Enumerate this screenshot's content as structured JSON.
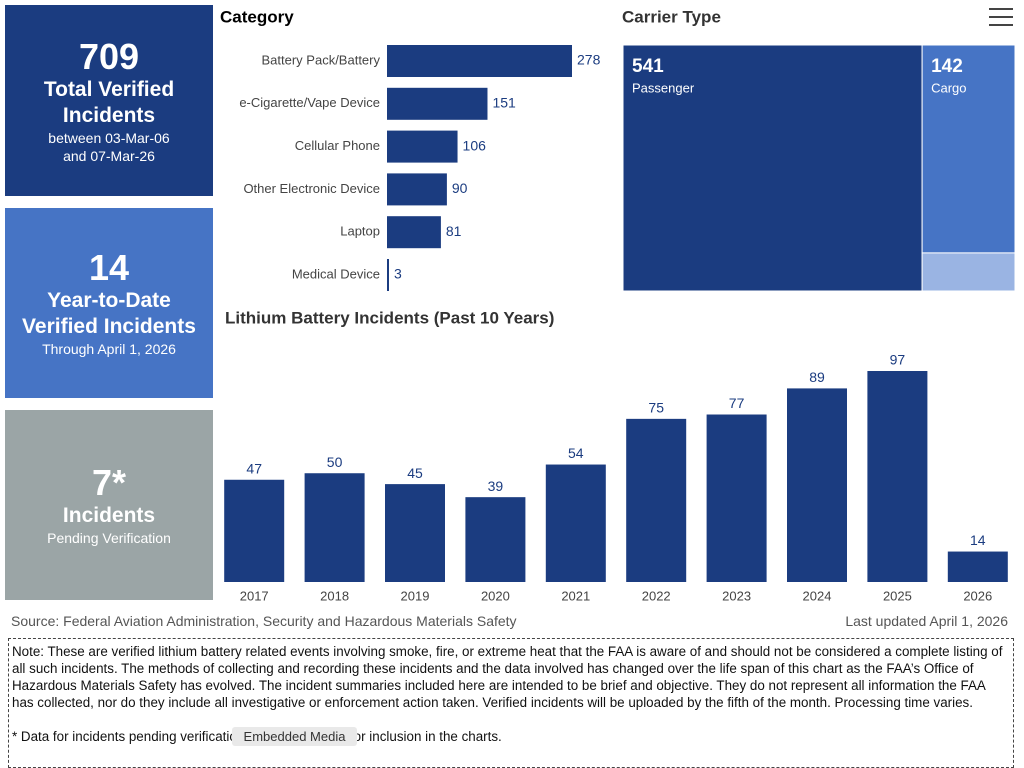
{
  "cards": [
    {
      "value": 709,
      "label": "Total Verified Incidents",
      "sub": "between 03-Mar-06 and 07-Mar-26"
    },
    {
      "value": 14,
      "label": "Year-to-Date Verified Incidents",
      "sub": "Through April 1, 2026"
    },
    {
      "value": "7*",
      "label": "Incidents",
      "sub": "Pending Verification"
    }
  ],
  "chart_data": [
    {
      "type": "hbar",
      "title": "Category",
      "categories": [
        "Battery Pack/Battery",
        "e-Cigarette/Vape Device",
        "Cellular Phone",
        "Other Electronic Device",
        "Laptop",
        "Medical Device"
      ],
      "values": [
        278,
        151,
        106,
        90,
        81,
        3
      ],
      "color": "#1b3c80"
    },
    {
      "type": "treemap",
      "title": "Carrier Type",
      "categories": [
        "Passenger",
        "Cargo",
        null
      ],
      "values": [
        541,
        142,
        26
      ],
      "colors": [
        "#1b3c80",
        "#4674c5",
        "#9ab4e3"
      ]
    },
    {
      "type": "bar",
      "title": "Lithium Battery Incidents (Past 10 Years)",
      "categories": [
        "2017",
        "2018",
        "2019",
        "2020",
        "2021",
        "2022",
        "2023",
        "2024",
        "2025",
        "2026"
      ],
      "values": [
        47,
        50,
        45,
        39,
        54,
        75,
        77,
        89,
        97,
        14
      ],
      "color": "#1b3c80"
    }
  ],
  "source": "Source: Federal Aviation Administration, Security and Hazardous Materials Safety",
  "last_updated": "Last updated April 1, 2026",
  "note": "Note: These are verified lithium battery related events involving smoke, fire, or extreme heat that the FAA is aware of and should not be considered a complete listing of all such incidents. The methods of collecting and recording these incidents and the data involved has changed over the life span of this chart as the FAA’s Office of Hazardous Materials Safety has evolved.  The incident summaries included here are intended to be brief and objective. They do not represent all information the FAA has collected, nor do they include all investigative or enforcement action taken. Verified incidents will be uploaded by the fifth of the month. Processing time varies.",
  "footnote": "* Data for incidents pending verification are not available for inclusion in the charts.",
  "tooltip": "Embedded Media"
}
